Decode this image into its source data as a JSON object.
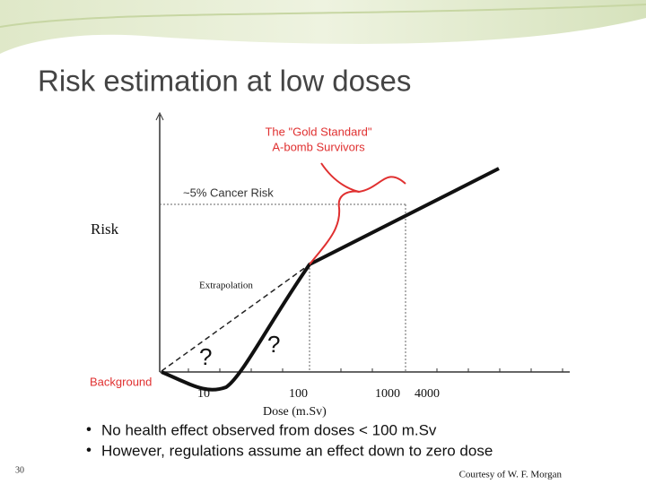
{
  "header": {
    "title": "Risk estimation at low doses"
  },
  "diagram": {
    "gold_standard_line1": "The \"Gold Standard\"",
    "gold_standard_line2": "A-bomb Survivors",
    "cancer_risk": "~5% Cancer Risk",
    "y_axis_label": "Risk",
    "extrapolation": "Extrapolation",
    "question_left": "?",
    "question_right": "?",
    "background": "Background",
    "x_tick_labels": [
      "10",
      "100",
      "1000",
      "4000"
    ],
    "x_axis_label": "Dose (m.Sv)"
  },
  "bullets": [
    "No health effect observed from doses < 100 m.Sv",
    "However, regulations assume an effect down to zero dose"
  ],
  "footer": {
    "page_number": "30",
    "credit": "Courtesy of W. F. Morgan"
  }
}
